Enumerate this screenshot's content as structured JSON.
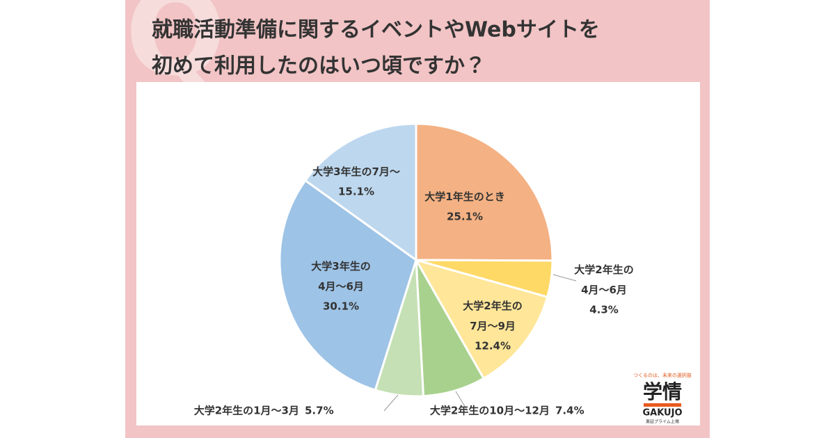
{
  "chart_data": {
    "type": "pie",
    "title": [
      "就職活動準備に関するイベントやWebサイトを",
      "初めて利用したのはいつ頃ですか？"
    ],
    "categories": [
      "大学1年生のとき",
      "大学2年生の4月～6月",
      "大学2年生の7月～9月",
      "大学2年生の10月～12月",
      "大学2年生の1月～3月",
      "大学3年生の4月～6月",
      "大学3年生の7月～"
    ],
    "values": [
      25.1,
      4.3,
      12.4,
      7.4,
      5.7,
      30.1,
      15.1
    ],
    "value_labels": [
      "25.1%",
      "4.3%",
      "12.4%",
      "7.4%",
      "5.7%",
      "30.1%",
      "15.1%"
    ],
    "colors": [
      "#f4b183",
      "#ffd966",
      "#ffe699",
      "#a9d18e",
      "#c5e0b4",
      "#9dc3e6",
      "#bdd7ee"
    ]
  },
  "logo": {
    "tagline": "つくるのは、未来の選択肢",
    "name": "学情",
    "brand": "GAKUJO",
    "note": "東証プライム上場"
  }
}
